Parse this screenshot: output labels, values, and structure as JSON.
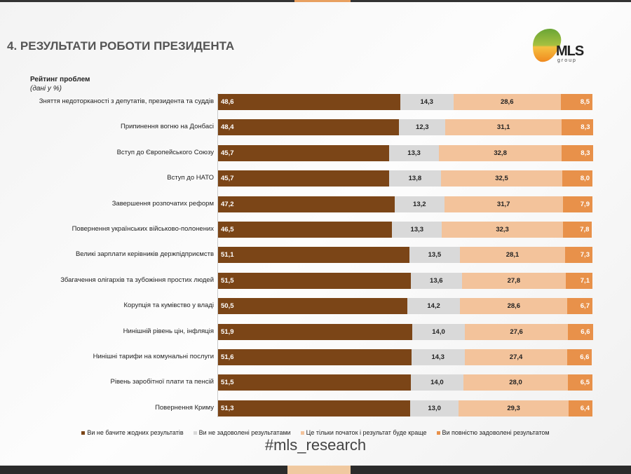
{
  "title": "4. РЕЗУЛЬТАТИ РОБОТИ ПРЕЗИДЕНТА",
  "logo": {
    "text": "MLS",
    "sub": "group"
  },
  "hashtag": "#mls_research",
  "chart_data": {
    "type": "bar",
    "stacked": true,
    "orientation": "horizontal",
    "title": "Рейтинг проблем",
    "subtitle": "(дані у %)",
    "categories": [
      "Зняття недоторканості з депутатів, президента та суддів",
      "Припинення вогню на Донбасі",
      "Вступ до Європейського Союзу",
      "Вступ до НАТО",
      "Завершення розпочатих реформ",
      "Повернення українських військово-полонених",
      "Великі зарплати керівників держпідприємств",
      "Збагачення олігархів та зубожіння простих людей",
      "Корупція та кумівство у владі",
      "Нинішній рівень цін, інфляція",
      "Нинішні тарифи на комунальні послуги",
      "Рівень заробітної плати та пенсій",
      "Повернення Криму"
    ],
    "series": [
      {
        "name": "Ви не бачите жодних результатів",
        "color": "#7b4517",
        "text_color": "#ffffff",
        "values": [
          48.6,
          48.4,
          45.7,
          45.7,
          47.2,
          46.5,
          51.1,
          51.5,
          50.5,
          51.9,
          51.6,
          51.5,
          51.3
        ]
      },
      {
        "name": "Ви не задоволені результатами",
        "color": "#d9d9d9",
        "text_color": "#222222",
        "values": [
          14.3,
          12.3,
          13.3,
          13.8,
          13.2,
          13.3,
          13.5,
          13.6,
          14.2,
          14.0,
          14.3,
          14.0,
          13.0
        ]
      },
      {
        "name": "Це тільки початок і результат буде краще",
        "color": "#f3c39b",
        "text_color": "#222222",
        "values": [
          28.6,
          31.1,
          32.8,
          32.5,
          31.7,
          32.3,
          28.1,
          27.8,
          28.6,
          27.6,
          27.4,
          28.0,
          29.3
        ]
      },
      {
        "name": "Ви повністю задоволені результатом",
        "color": "#e8914a",
        "text_color": "#ffffff",
        "values": [
          8.5,
          8.3,
          8.3,
          8.0,
          7.9,
          7.8,
          7.3,
          7.1,
          6.7,
          6.6,
          6.6,
          6.5,
          6.4
        ]
      }
    ],
    "xlim": [
      0,
      100
    ],
    "legend": "bottom"
  }
}
